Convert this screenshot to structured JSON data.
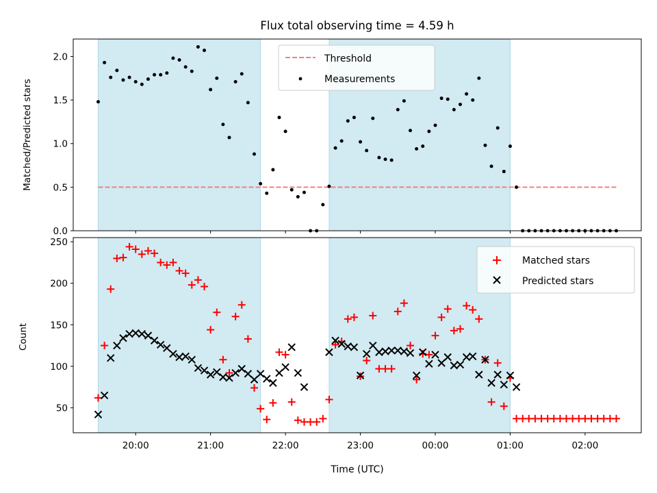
{
  "chart_data": [
    {
      "type": "scatter",
      "title": "Flux total observing time = 4.59 h",
      "xlabel": "",
      "ylabel": "Matched/Predicted stars",
      "ylim": [
        0,
        2.2
      ],
      "yticks": [
        "0.0",
        "0.5",
        "1.0",
        "1.5",
        "2.0"
      ],
      "threshold": {
        "name": "Threshold",
        "value": 0.5,
        "x_start": "19:30",
        "x_end": "02:25",
        "color": "#f08080"
      },
      "shaded_periods": [
        [
          "19:30",
          "21:40"
        ],
        [
          "22:35",
          "01:00"
        ]
      ],
      "shade_color": "#add8e6",
      "legend": {
        "position": "top-center",
        "entries": [
          "Threshold",
          "Measurements"
        ]
      },
      "series": [
        {
          "name": "Measurements",
          "color": "#000000",
          "x": [
            "19:30",
            "19:35",
            "19:40",
            "19:45",
            "19:50",
            "19:55",
            "20:00",
            "20:05",
            "20:10",
            "20:15",
            "20:20",
            "20:25",
            "20:30",
            "20:35",
            "20:40",
            "20:45",
            "20:50",
            "20:55",
            "21:00",
            "21:05",
            "21:10",
            "21:15",
            "21:20",
            "21:25",
            "21:30",
            "21:35",
            "21:40",
            "21:45",
            "21:50",
            "21:55",
            "22:00",
            "22:05",
            "22:10",
            "22:15",
            "22:20",
            "22:25",
            "22:30",
            "22:35",
            "22:40",
            "22:45",
            "22:50",
            "22:55",
            "23:00",
            "23:05",
            "23:10",
            "23:15",
            "23:20",
            "23:25",
            "23:30",
            "23:35",
            "23:40",
            "23:45",
            "23:50",
            "23:55",
            "00:00",
            "00:05",
            "00:10",
            "00:15",
            "00:20",
            "00:25",
            "00:30",
            "00:35",
            "00:40",
            "00:45",
            "00:50",
            "00:55",
            "01:00",
            "01:05",
            "01:10",
            "01:15",
            "01:20",
            "01:25",
            "01:30",
            "01:35",
            "01:40",
            "01:45",
            "01:50",
            "01:55",
            "02:00",
            "02:05",
            "02:10",
            "02:15",
            "02:20",
            "02:25"
          ],
          "y": [
            1.48,
            1.93,
            1.76,
            1.84,
            1.73,
            1.76,
            1.71,
            1.68,
            1.74,
            1.79,
            1.79,
            1.81,
            1.98,
            1.96,
            1.88,
            1.83,
            2.11,
            2.07,
            1.62,
            1.75,
            1.22,
            1.07,
            1.71,
            1.8,
            1.47,
            0.88,
            0.54,
            0.43,
            0.7,
            1.3,
            1.14,
            0.47,
            0.39,
            0.44,
            0.0,
            0.0,
            0.3,
            0.51,
            0.95,
            1.03,
            1.26,
            1.3,
            1.02,
            0.92,
            1.29,
            0.84,
            0.82,
            0.81,
            1.39,
            1.49,
            1.15,
            0.94,
            0.97,
            1.14,
            1.21,
            1.52,
            1.51,
            1.39,
            1.45,
            1.57,
            1.5,
            1.75,
            0.98,
            0.74,
            1.18,
            0.68,
            0.97,
            0.5,
            0.0,
            0.0,
            0.0,
            0.0,
            0.0,
            0.0,
            0.0,
            0.0,
            0.0,
            0.0,
            0.0,
            0.0,
            0.0,
            0.0,
            0.0,
            0.0
          ]
        }
      ]
    },
    {
      "type": "scatter",
      "title": "",
      "xlabel": "Time (UTC)",
      "ylabel": "Count",
      "ylim": [
        20,
        255
      ],
      "yticks": [
        "50",
        "100",
        "150",
        "200",
        "250"
      ],
      "xticks": [
        "20:00",
        "21:00",
        "22:00",
        "23:00",
        "00:00",
        "01:00",
        "02:00"
      ],
      "shaded_periods": [
        [
          "19:30",
          "21:40"
        ],
        [
          "22:35",
          "01:00"
        ]
      ],
      "shade_color": "#add8e6",
      "legend": {
        "position": "top-right",
        "entries": [
          "Matched stars",
          "Predicted stars"
        ]
      },
      "series": [
        {
          "name": "Matched stars",
          "marker": "+",
          "color": "#ff0000",
          "x": [
            "19:30",
            "19:35",
            "19:40",
            "19:45",
            "19:50",
            "19:55",
            "20:00",
            "20:05",
            "20:10",
            "20:15",
            "20:20",
            "20:25",
            "20:30",
            "20:35",
            "20:40",
            "20:45",
            "20:50",
            "20:55",
            "21:00",
            "21:05",
            "21:10",
            "21:15",
            "21:20",
            "21:25",
            "21:30",
            "21:35",
            "21:40",
            "21:45",
            "21:50",
            "21:55",
            "22:00",
            "22:05",
            "22:10",
            "22:15",
            "22:20",
            "22:25",
            "22:30",
            "22:35",
            "22:40",
            "22:45",
            "22:50",
            "22:55",
            "23:00",
            "23:05",
            "23:10",
            "23:15",
            "23:20",
            "23:25",
            "23:30",
            "23:35",
            "23:40",
            "23:45",
            "23:50",
            "23:55",
            "00:00",
            "00:05",
            "00:10",
            "00:15",
            "00:20",
            "00:25",
            "00:30",
            "00:35",
            "00:40",
            "00:45",
            "00:50",
            "00:55",
            "01:00",
            "01:05",
            "01:10",
            "01:15",
            "01:20",
            "01:25",
            "01:30",
            "01:35",
            "01:40",
            "01:45",
            "01:50",
            "01:55",
            "02:00",
            "02:05",
            "02:10",
            "02:15",
            "02:20",
            "02:25"
          ],
          "y": [
            62,
            125,
            193,
            230,
            231,
            244,
            241,
            235,
            239,
            236,
            225,
            222,
            225,
            215,
            212,
            198,
            204,
            196,
            144,
            165,
            108,
            92,
            160,
            174,
            133,
            74,
            49,
            36,
            56,
            117,
            114,
            57,
            35,
            33,
            33,
            33,
            37,
            60,
            126,
            130,
            157,
            159,
            88,
            107,
            161,
            97,
            97,
            97,
            166,
            176,
            125,
            84,
            115,
            114,
            137,
            159,
            169,
            143,
            145,
            173,
            168,
            157,
            108,
            57,
            104,
            52,
            86,
            37,
            37,
            37,
            37,
            37,
            37,
            37,
            37,
            37,
            37,
            37,
            37,
            37,
            37,
            37,
            37,
            37
          ]
        },
        {
          "name": "Predicted stars",
          "marker": "x",
          "color": "#000000",
          "x": [
            "19:30",
            "19:35",
            "19:40",
            "19:45",
            "19:50",
            "19:55",
            "20:00",
            "20:05",
            "20:10",
            "20:15",
            "20:20",
            "20:25",
            "20:30",
            "20:35",
            "20:40",
            "20:45",
            "20:50",
            "20:55",
            "21:00",
            "21:05",
            "21:10",
            "21:15",
            "21:20",
            "21:25",
            "21:30",
            "21:35",
            "21:40",
            "21:45",
            "21:50",
            "21:55",
            "22:00",
            "22:05",
            "22:10",
            "22:15",
            "22:35",
            "22:40",
            "22:45",
            "22:50",
            "22:55",
            "23:00",
            "23:05",
            "23:10",
            "23:15",
            "23:20",
            "23:25",
            "23:30",
            "23:35",
            "23:40",
            "23:45",
            "23:50",
            "23:55",
            "00:00",
            "00:05",
            "00:10",
            "00:15",
            "00:20",
            "00:25",
            "00:30",
            "00:35",
            "00:40",
            "00:45",
            "00:50",
            "00:55",
            "01:00",
            "01:05"
          ],
          "y": [
            42,
            65,
            110,
            125,
            134,
            139,
            140,
            139,
            137,
            131,
            126,
            122,
            115,
            111,
            112,
            108,
            98,
            95,
            90,
            93,
            87,
            86,
            92,
            97,
            91,
            84,
            91,
            85,
            80,
            92,
            99,
            123,
            92,
            75,
            117,
            131,
            127,
            124,
            123,
            89,
            115,
            125,
            117,
            118,
            119,
            119,
            118,
            116,
            89,
            117,
            103,
            114,
            104,
            111,
            101,
            102,
            111,
            112,
            90,
            108,
            80,
            90,
            78,
            89,
            75
          ]
        }
      ]
    }
  ]
}
